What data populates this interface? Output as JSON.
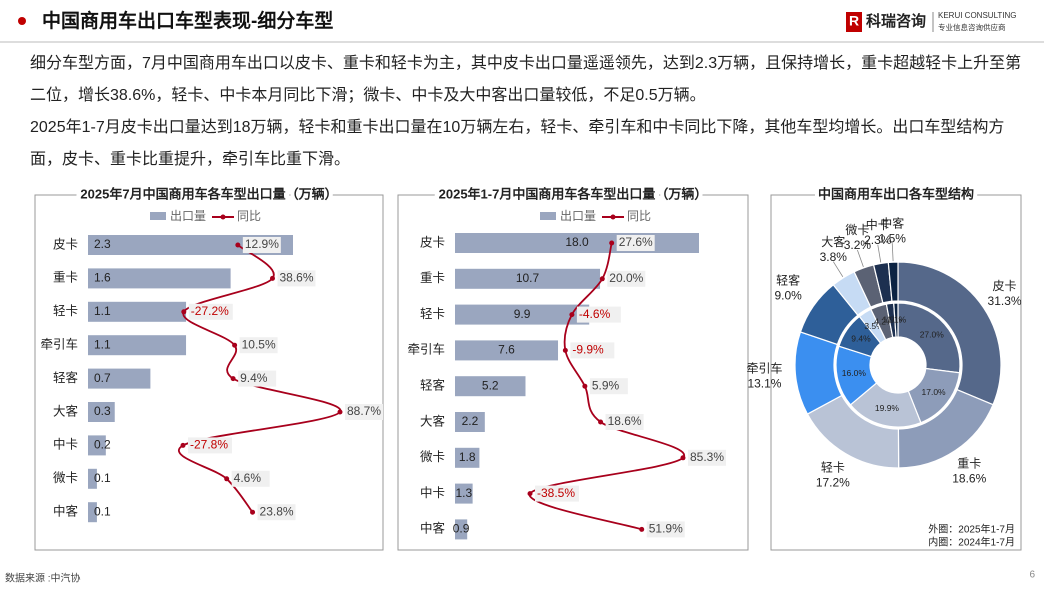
{
  "header": {
    "title": "中国商用车出口车型表现-细分车型",
    "logo": "科瑞咨询",
    "logo_en": "KERUI CONSULTING",
    "logo_sub": "专业信息咨询供应商"
  },
  "paragraphs": [
    "细分车型方面，7月中国商用车出口以皮卡、重卡和轻卡为主，其中皮卡出口量遥遥领先，达到2.3万辆，且保持增长，重卡超越轻卡上升至第二位，增长38.6%，轻卡、中卡本月同比下滑；微卡、中卡及大中客出口量较低，不足0.5万辆。",
    "2025年1-7月皮卡出口量达到18万辆，轻卡和重卡出口量在10万辆左右，轻卡、牵引车和中卡同比下降，其他车型均增长。出口车型结构方面，皮卡、重卡比重提升，牵引车比重下滑。"
  ],
  "chart_data": [
    {
      "type": "combo",
      "title": "2025年7月中国商用车各车型出口量（万辆）",
      "categories": [
        "皮卡",
        "重卡",
        "轻卡",
        "牵引车",
        "轻客",
        "大客",
        "中卡",
        "微卡",
        "中客"
      ],
      "series": [
        {
          "name": "出口量",
          "type": "bar",
          "color": "#9aa6bf",
          "values": [
            2.3,
            1.6,
            1.1,
            1.1,
            0.7,
            0.3,
            0.2,
            0.1,
            0.1
          ]
        },
        {
          "name": "同比",
          "type": "line",
          "color": "#a8001c",
          "values": [
            12.9,
            38.6,
            -27.2,
            10.5,
            9.4,
            88.7,
            -27.8,
            4.6,
            23.8
          ],
          "value_labels": [
            "12.9%",
            "38.6%",
            "-27.2%",
            "10.5%",
            "9.4%",
            "88.7%",
            "-27.8%",
            "4.6%",
            "23.8%"
          ]
        }
      ]
    },
    {
      "type": "combo",
      "title": "2025年1-7月中国商用车各车型出口量（万辆）",
      "categories": [
        "皮卡",
        "重卡",
        "轻卡",
        "牵引车",
        "轻客",
        "大客",
        "微卡",
        "中卡",
        "中客"
      ],
      "series": [
        {
          "name": "出口量",
          "type": "bar",
          "color": "#9aa6bf",
          "values": [
            18.0,
            10.7,
            9.9,
            7.6,
            5.2,
            2.2,
            1.8,
            1.3,
            0.9
          ],
          "value_labels": [
            "18.0",
            "10.7",
            "9.9",
            "7.6",
            "5.2",
            "2.2",
            "1.8",
            "1.3",
            "0.9"
          ]
        },
        {
          "name": "同比",
          "type": "line",
          "color": "#a8001c",
          "values": [
            27.6,
            20.0,
            -4.6,
            -9.9,
            5.9,
            18.6,
            85.3,
            -38.5,
            51.9
          ],
          "value_labels": [
            "27.6%",
            "20.0%",
            "-4.6%",
            "-9.9%",
            "5.9%",
            "18.6%",
            "85.3%",
            "-38.5%",
            "51.9%"
          ]
        }
      ]
    },
    {
      "type": "donut",
      "title": "中国商用车出口各车型结构",
      "categories": [
        "皮卡",
        "重卡",
        "轻卡",
        "牵引车",
        "轻客",
        "大客",
        "微卡",
        "中卡",
        "中客"
      ],
      "colors": [
        "#55688a",
        "#8d9cb9",
        "#b9c3d6",
        "#3b8ff0",
        "#2e5f99",
        "#c6dbf4",
        "#5b6274",
        "#1d3050",
        "#0c2342"
      ],
      "series": [
        {
          "values": [
            31.3,
            18.6,
            17.2,
            13.1,
            9.0,
            3.8,
            3.2,
            2.3,
            1.5
          ],
          "value_labels": [
            "31.3%",
            "18.6%",
            "17.2%",
            "13.1%",
            "9.0%",
            "3.8%",
            "3.2%",
            "2.3%",
            "1.5%"
          ]
        },
        {
          "values": [
            27.0,
            17.0,
            19.9,
            16.0,
            9.4,
            3.5,
            4.2,
            1.9,
            1.1
          ],
          "value_labels": [
            "27.0%",
            "17.0%",
            "19.9%",
            "16.0%",
            "9.4%",
            "3.5%",
            "4.2%",
            "1.9%",
            "1.1%"
          ]
        }
      ],
      "notes": [
        "外圈：2025年1-7月",
        "内圈：2024年1-7月"
      ]
    }
  ],
  "footer": {
    "source": "数据来源 :中汽协",
    "page": "6"
  }
}
